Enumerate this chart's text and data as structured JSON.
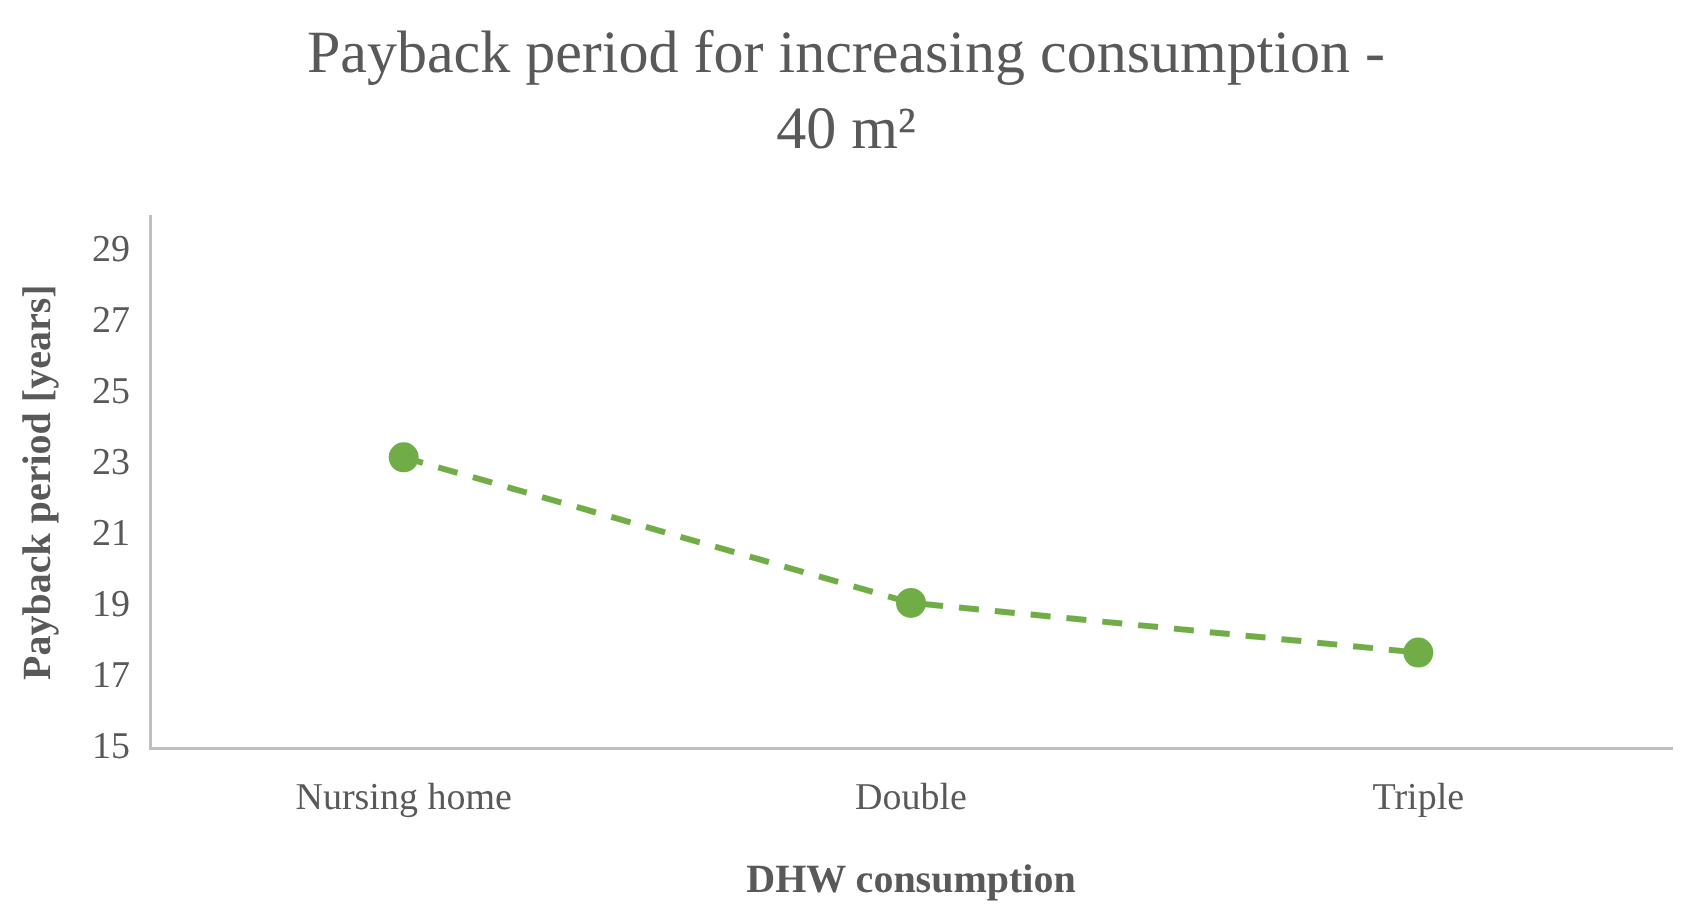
{
  "chart_data": {
    "type": "line",
    "title": "Payback period for increasing consumption - 40 m²",
    "xlabel": "DHW consumption",
    "ylabel": "Payback period [years]",
    "categories": [
      "Nursing home",
      "Double",
      "Triple"
    ],
    "series": [
      {
        "color": "#70ad47",
        "values": [
          23.2,
          19.1,
          17.7
        ]
      }
    ],
    "ylim": [
      15,
      30
    ],
    "yticks": [
      15,
      17,
      19,
      21,
      23,
      25,
      27,
      29
    ],
    "grid": false,
    "legend": false,
    "marker": "circle",
    "line_style": "dashed"
  }
}
